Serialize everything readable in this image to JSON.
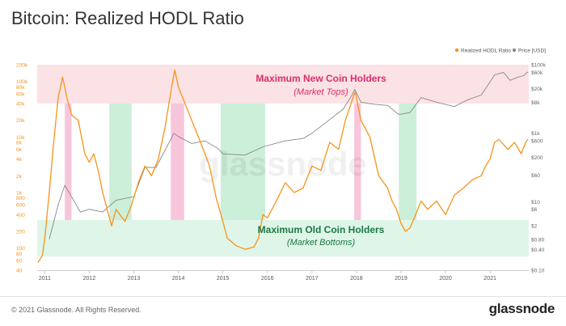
{
  "title": "Bitcoin: Realized HODL Ratio",
  "footer": {
    "copyright": "© 2021 Glassnode. All Rights Reserved.",
    "brand": "glassnode"
  },
  "watermark": "glassnode",
  "colors": {
    "ratio": "#f7931a",
    "price": "#888888",
    "top_zone": "#f9d8dc",
    "bottom_zone": "#d4f1e0",
    "top_spike": "#f6bcd3",
    "bottom_spike": "#c3ecd2",
    "top_text": "#dc2d6b",
    "bottom_text": "#1a7a44"
  },
  "chart_data": {
    "type": "line",
    "title": "Bitcoin: Realized HODL Ratio",
    "legend": {
      "placement": "top-right",
      "entries": [
        "Realized HODL Ratio",
        "Price [USD]"
      ]
    },
    "x_ticks": [
      "2011",
      "2012",
      "2013",
      "2014",
      "2015",
      "2016",
      "2017",
      "2018",
      "2019",
      "2020",
      "2021"
    ],
    "x_range": [
      2010.83,
      2021.87
    ],
    "left_axis": {
      "scale": "log",
      "range": [
        40,
        200000
      ],
      "ticks": [
        {
          "v": 200000,
          "label": "200k"
        },
        {
          "v": 100000,
          "label": "100k"
        },
        {
          "v": 80000,
          "label": "80k"
        },
        {
          "v": 60000,
          "label": "60k"
        },
        {
          "v": 40000,
          "label": "40k"
        },
        {
          "v": 20000,
          "label": "20k"
        },
        {
          "v": 10000,
          "label": "10k"
        },
        {
          "v": 8000,
          "label": "8k"
        },
        {
          "v": 6000,
          "label": "6k"
        },
        {
          "v": 4000,
          "label": "4k"
        },
        {
          "v": 2000,
          "label": "2k"
        },
        {
          "v": 1000,
          "label": "1k"
        },
        {
          "v": 800,
          "label": "800"
        },
        {
          "v": 600,
          "label": "600"
        },
        {
          "v": 400,
          "label": "400"
        },
        {
          "v": 200,
          "label": "200"
        },
        {
          "v": 100,
          "label": "100"
        },
        {
          "v": 80,
          "label": "80"
        },
        {
          "v": 60,
          "label": "60"
        },
        {
          "v": 40,
          "label": "40"
        }
      ]
    },
    "right_axis": {
      "scale": "log",
      "range": [
        0.1,
        100000
      ],
      "ticks": [
        {
          "v": 100000,
          "label": "$100k"
        },
        {
          "v": 60000,
          "label": "$60k"
        },
        {
          "v": 20000,
          "label": "$20k"
        },
        {
          "v": 8000,
          "label": "$8k"
        },
        {
          "v": 1000,
          "label": "$1k"
        },
        {
          "v": 600,
          "label": "$600"
        },
        {
          "v": 200,
          "label": "$200"
        },
        {
          "v": 60,
          "label": "$60"
        },
        {
          "v": 10,
          "label": "$10"
        },
        {
          "v": 6,
          "label": "$6"
        },
        {
          "v": 2,
          "label": "$2"
        },
        {
          "v": 0.8,
          "label": "$0.80"
        },
        {
          "v": 0.4,
          "label": "$0.40"
        },
        {
          "v": 0.1,
          "label": "$0.10"
        }
      ]
    },
    "zones": [
      {
        "kind": "top",
        "from": 40000,
        "to": 200000,
        "label": "Maximum New Coin Holders",
        "sublabel": "(Market Tops)"
      },
      {
        "kind": "bottom",
        "from": 70,
        "to": 320,
        "label": "Maximum Old Coin Holders",
        "sublabel": "(Market Bottoms)"
      }
    ],
    "spans": [
      {
        "kind": "top",
        "x0": 2011.45,
        "x1": 2011.6
      },
      {
        "kind": "bottom",
        "x0": 2012.45,
        "x1": 2012.95
      },
      {
        "kind": "top",
        "x0": 2013.83,
        "x1": 2014.13
      },
      {
        "kind": "bottom",
        "x0": 2014.95,
        "x1": 2015.95
      },
      {
        "kind": "top",
        "x0": 2017.95,
        "x1": 2018.1
      },
      {
        "kind": "bottom",
        "x0": 2018.95,
        "x1": 2019.35
      }
    ],
    "series": [
      {
        "name": "Realized HODL Ratio",
        "axis": "left",
        "points": [
          [
            2010.85,
            55
          ],
          [
            2010.95,
            75
          ],
          [
            2011.0,
            150
          ],
          [
            2011.1,
            1000
          ],
          [
            2011.2,
            8000
          ],
          [
            2011.3,
            50000
          ],
          [
            2011.4,
            120000
          ],
          [
            2011.5,
            50000
          ],
          [
            2011.6,
            25000
          ],
          [
            2011.75,
            20000
          ],
          [
            2011.9,
            5000
          ],
          [
            2012.0,
            3500
          ],
          [
            2012.1,
            5000
          ],
          [
            2012.2,
            2500
          ],
          [
            2012.3,
            1000
          ],
          [
            2012.4,
            500
          ],
          [
            2012.5,
            250
          ],
          [
            2012.6,
            500
          ],
          [
            2012.8,
            300
          ],
          [
            2012.95,
            600
          ],
          [
            2013.1,
            1500
          ],
          [
            2013.25,
            3000
          ],
          [
            2013.4,
            2000
          ],
          [
            2013.55,
            4000
          ],
          [
            2013.7,
            15000
          ],
          [
            2013.85,
            80000
          ],
          [
            2013.92,
            160000
          ],
          [
            2014.0,
            80000
          ],
          [
            2014.1,
            50000
          ],
          [
            2014.3,
            20000
          ],
          [
            2014.5,
            8000
          ],
          [
            2014.7,
            3000
          ],
          [
            2014.85,
            800
          ],
          [
            2015.0,
            300
          ],
          [
            2015.1,
            150
          ],
          [
            2015.3,
            110
          ],
          [
            2015.5,
            95
          ],
          [
            2015.7,
            105
          ],
          [
            2015.8,
            150
          ],
          [
            2015.9,
            400
          ],
          [
            2016.0,
            350
          ],
          [
            2016.2,
            700
          ],
          [
            2016.4,
            1500
          ],
          [
            2016.6,
            1000
          ],
          [
            2016.8,
            1200
          ],
          [
            2017.0,
            3000
          ],
          [
            2017.2,
            2500
          ],
          [
            2017.4,
            8000
          ],
          [
            2017.6,
            6000
          ],
          [
            2017.75,
            20000
          ],
          [
            2017.9,
            45000
          ],
          [
            2017.97,
            65000
          ],
          [
            2018.1,
            20000
          ],
          [
            2018.3,
            10000
          ],
          [
            2018.5,
            2000
          ],
          [
            2018.7,
            1200
          ],
          [
            2018.8,
            700
          ],
          [
            2018.9,
            500
          ],
          [
            2019.0,
            280
          ],
          [
            2019.1,
            200
          ],
          [
            2019.2,
            230
          ],
          [
            2019.3,
            350
          ],
          [
            2019.45,
            700
          ],
          [
            2019.6,
            500
          ],
          [
            2019.8,
            700
          ],
          [
            2020.0,
            400
          ],
          [
            2020.2,
            900
          ],
          [
            2020.4,
            1200
          ],
          [
            2020.6,
            1700
          ],
          [
            2020.8,
            2000
          ],
          [
            2020.9,
            3000
          ],
          [
            2021.0,
            4000
          ],
          [
            2021.1,
            8000
          ],
          [
            2021.2,
            9000
          ],
          [
            2021.4,
            6000
          ],
          [
            2021.55,
            8000
          ],
          [
            2021.7,
            5000
          ],
          [
            2021.8,
            8000
          ],
          [
            2021.85,
            9000
          ]
        ]
      },
      {
        "name": "Price [USD]",
        "axis": "right",
        "points": [
          [
            2011.1,
            0.8
          ],
          [
            2011.3,
            8
          ],
          [
            2011.45,
            30
          ],
          [
            2011.6,
            14
          ],
          [
            2011.8,
            5
          ],
          [
            2012.0,
            6
          ],
          [
            2012.3,
            5
          ],
          [
            2012.6,
            11
          ],
          [
            2013.0,
            14
          ],
          [
            2013.25,
            100
          ],
          [
            2013.5,
            100
          ],
          [
            2013.9,
            1000
          ],
          [
            2014.0,
            800
          ],
          [
            2014.3,
            500
          ],
          [
            2014.6,
            600
          ],
          [
            2014.9,
            350
          ],
          [
            2015.0,
            250
          ],
          [
            2015.5,
            230
          ],
          [
            2015.9,
            400
          ],
          [
            2016.4,
            600
          ],
          [
            2016.8,
            700
          ],
          [
            2017.0,
            1000
          ],
          [
            2017.4,
            2500
          ],
          [
            2017.7,
            5000
          ],
          [
            2017.9,
            13000
          ],
          [
            2017.96,
            19000
          ],
          [
            2018.1,
            8000
          ],
          [
            2018.4,
            7000
          ],
          [
            2018.7,
            6500
          ],
          [
            2018.95,
            3500
          ],
          [
            2019.2,
            4000
          ],
          [
            2019.45,
            11000
          ],
          [
            2019.8,
            8000
          ],
          [
            2020.2,
            6000
          ],
          [
            2020.5,
            9500
          ],
          [
            2020.8,
            13000
          ],
          [
            2020.95,
            25000
          ],
          [
            2021.1,
            50000
          ],
          [
            2021.3,
            60000
          ],
          [
            2021.45,
            35000
          ],
          [
            2021.6,
            42000
          ],
          [
            2021.75,
            48000
          ],
          [
            2021.85,
            62000
          ]
        ]
      }
    ]
  }
}
